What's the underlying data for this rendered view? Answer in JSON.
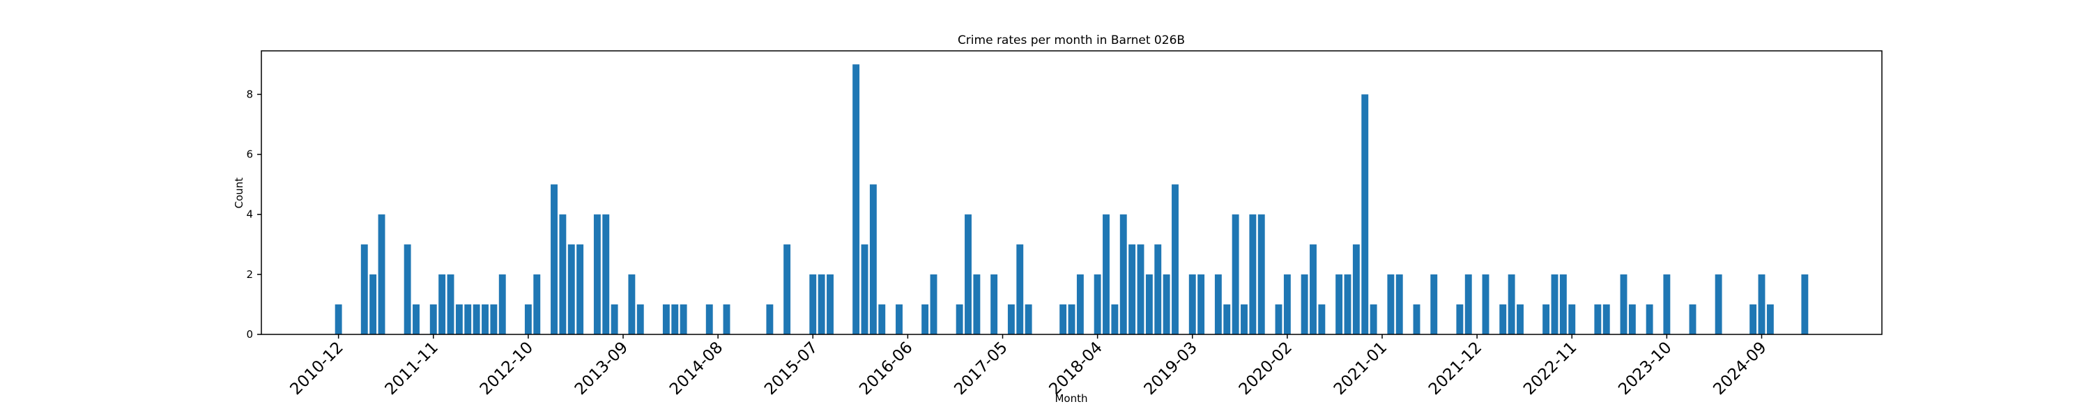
{
  "chart_data": {
    "type": "bar",
    "title": "Crime rates per month in Barnet 026B",
    "xlabel": "Month",
    "ylabel": "Count",
    "categories": [
      "2010-12",
      null,
      null,
      null,
      null,
      null,
      null,
      null,
      null,
      null,
      null,
      "2011-11",
      null,
      null,
      null,
      null,
      null,
      null,
      null,
      null,
      null,
      null,
      "2012-10",
      null,
      null,
      null,
      null,
      null,
      null,
      null,
      null,
      null,
      null,
      "2013-09",
      null,
      null,
      null,
      null,
      null,
      null,
      null,
      null,
      null,
      null,
      "2014-08",
      null,
      null,
      null,
      null,
      null,
      null,
      null,
      null,
      null,
      null,
      "2015-07",
      null,
      null,
      null,
      null,
      null,
      null,
      null,
      null,
      null,
      null,
      "2016-06",
      null,
      null,
      null,
      null,
      null,
      null,
      null,
      null,
      null,
      null,
      "2017-05",
      null,
      null,
      null,
      null,
      null,
      null,
      null,
      null,
      null,
      null,
      "2018-04",
      null,
      null,
      null,
      null,
      null,
      null,
      null,
      null,
      null,
      null,
      "2019-03",
      null,
      null,
      null,
      null,
      null,
      null,
      null,
      null,
      null,
      null,
      "2020-02",
      null,
      null,
      null,
      null,
      null,
      null,
      null,
      null,
      null,
      null,
      "2021-01",
      null,
      null,
      null,
      null,
      null,
      null,
      null,
      null,
      null,
      null,
      "2021-12",
      null,
      null,
      null,
      null,
      null,
      null,
      null,
      null,
      null,
      null,
      "2022-11",
      null,
      null,
      null,
      null,
      null,
      null,
      null,
      null,
      null,
      null,
      "2023-10",
      null,
      null,
      null,
      null,
      null,
      null,
      null,
      null,
      null,
      null,
      "2024-09",
      null,
      null,
      null,
      null,
      null
    ],
    "values": [
      1,
      0,
      0,
      3,
      2,
      4,
      0,
      0,
      3,
      1,
      0,
      1,
      2,
      2,
      1,
      1,
      1,
      1,
      1,
      2,
      0,
      0,
      1,
      2,
      0,
      5,
      4,
      3,
      3,
      0,
      4,
      4,
      1,
      0,
      2,
      1,
      0,
      0,
      1,
      1,
      1,
      0,
      0,
      1,
      0,
      1,
      0,
      0,
      0,
      0,
      1,
      0,
      3,
      0,
      0,
      2,
      2,
      2,
      0,
      0,
      9,
      3,
      5,
      1,
      0,
      1,
      0,
      0,
      1,
      2,
      0,
      0,
      1,
      4,
      2,
      0,
      2,
      0,
      1,
      3,
      1,
      0,
      0,
      0,
      1,
      1,
      2,
      0,
      2,
      4,
      1,
      4,
      3,
      3,
      2,
      3,
      2,
      5,
      0,
      2,
      2,
      0,
      2,
      1,
      4,
      1,
      4,
      4,
      0,
      1,
      2,
      0,
      2,
      3,
      1,
      0,
      2,
      2,
      3,
      8,
      1,
      0,
      2,
      2,
      0,
      1,
      0,
      2,
      0,
      0,
      1,
      2,
      0,
      2,
      0,
      1,
      2,
      1,
      0,
      0,
      1,
      2,
      2,
      1,
      0,
      0,
      1,
      1,
      0,
      2,
      1,
      0,
      1,
      0,
      2,
      0,
      0,
      1,
      0,
      0,
      2,
      0,
      0,
      0,
      1,
      2,
      1,
      0,
      0,
      0,
      2
    ],
    "color": "#1f77b4",
    "ylim": [
      0,
      9.45
    ],
    "yticks": [
      0,
      2,
      4,
      6,
      8
    ],
    "grid": false
  }
}
